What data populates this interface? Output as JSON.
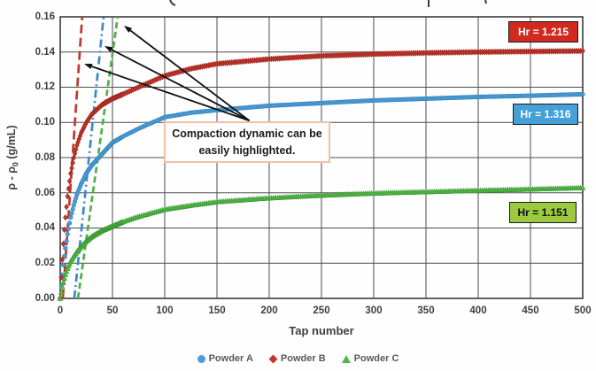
{
  "chart_data": {
    "type": "scatter",
    "xlabel": "Tap number",
    "ylabel": "ρ - ρ0 (g/mL)",
    "ylabel_parts": {
      "pre": "ρ - ρ",
      "sub": "0",
      "post": " (g/mL)"
    },
    "xlim": [
      0,
      500
    ],
    "ylim": [
      0,
      0.16
    ],
    "grid": "on",
    "legend_position": "bottom",
    "x_tick_labels": [
      "0",
      "50",
      "100",
      "150",
      "200",
      "250",
      "300",
      "350",
      "400",
      "450",
      "500"
    ],
    "y_tick_labels": [
      "0.00",
      "0.02",
      "0.04",
      "0.06",
      "0.08",
      "0.10",
      "0.12",
      "0.14",
      "0.16"
    ],
    "sample_taps": [
      0,
      1,
      2,
      3,
      4,
      5,
      7,
      10,
      13,
      16,
      20,
      25,
      30,
      40,
      50,
      60,
      75,
      100,
      125,
      150,
      200,
      250,
      300,
      350,
      400,
      450,
      500
    ],
    "series": [
      {
        "name": "Powder A",
        "marker": "circle",
        "color": "#4c9dd7",
        "stroke": "#2f7fb6",
        "hr_label": "Hr = 1.316",
        "label_bg": "#45a0d9",
        "label_fg": "#ffffff",
        "guide": {
          "dash": "dash-dot",
          "color": "#3b89c9",
          "from": [
            13.5,
            0
          ],
          "to": [
            41.5,
            0.16
          ]
        },
        "values": [
          0,
          0.007,
          0.0135,
          0.019,
          0.024,
          0.0285,
          0.0365,
          0.046,
          0.053,
          0.059,
          0.065,
          0.071,
          0.0755,
          0.082,
          0.0885,
          0.092,
          0.0965,
          0.103,
          0.1055,
          0.107,
          0.1095,
          0.111,
          0.1125,
          0.1135,
          0.1145,
          0.1152,
          0.116
        ]
      },
      {
        "name": "Powder B",
        "marker": "diamond",
        "color": "#c13529",
        "stroke": "#9a241b",
        "hr_label": "Hr = 1.215",
        "label_bg": "#d02a20",
        "label_fg": "#ffffff",
        "guide": {
          "dash": "long-dash",
          "color": "#c0392b",
          "from": [
            2.5,
            0
          ],
          "to": [
            21,
            0.16
          ]
        },
        "values": [
          0,
          0.012,
          0.022,
          0.031,
          0.039,
          0.046,
          0.058,
          0.071,
          0.08,
          0.087,
          0.094,
          0.1,
          0.1045,
          0.11,
          0.1135,
          0.116,
          0.12,
          0.1265,
          0.1305,
          0.1333,
          0.136,
          0.1378,
          0.1388,
          0.1395,
          0.14,
          0.1403,
          0.1406
        ]
      },
      {
        "name": "Powder C",
        "marker": "triangle",
        "color": "#53b649",
        "stroke": "#3a9a33",
        "hr_label": "Hr = 1.151",
        "label_bg": "#9cc93f",
        "label_fg": "#111111",
        "guide": {
          "dash": "dash",
          "color": "#4fb046",
          "from": [
            17,
            0
          ],
          "to": [
            55,
            0.16
          ]
        },
        "values": [
          0,
          0.0035,
          0.0065,
          0.009,
          0.0115,
          0.0135,
          0.017,
          0.021,
          0.024,
          0.0265,
          0.0295,
          0.0325,
          0.035,
          0.0385,
          0.041,
          0.0435,
          0.0465,
          0.0505,
          0.0528,
          0.0548,
          0.057,
          0.0585,
          0.0597,
          0.0605,
          0.0613,
          0.062,
          0.0628
        ]
      }
    ]
  },
  "annotation": {
    "line1": "Compaction dynamic can be",
    "line2": "easily highlighted.",
    "arrows": [
      {
        "from": [
          181,
          0.101
        ],
        "to": [
          22.9,
          0.1333
        ]
      },
      {
        "from": [
          181,
          0.101
        ],
        "to": [
          42.4,
          0.1434
        ]
      },
      {
        "from": [
          181,
          0.101
        ],
        "to": [
          61.0,
          0.155
        ]
      }
    ]
  },
  "colors": {
    "grid": "#4d4d4d",
    "plot_border": "#2e2e2e",
    "axis_text": "#3f3f3f",
    "annotation_border": "#f2c0a6",
    "arrow": "#111111"
  }
}
